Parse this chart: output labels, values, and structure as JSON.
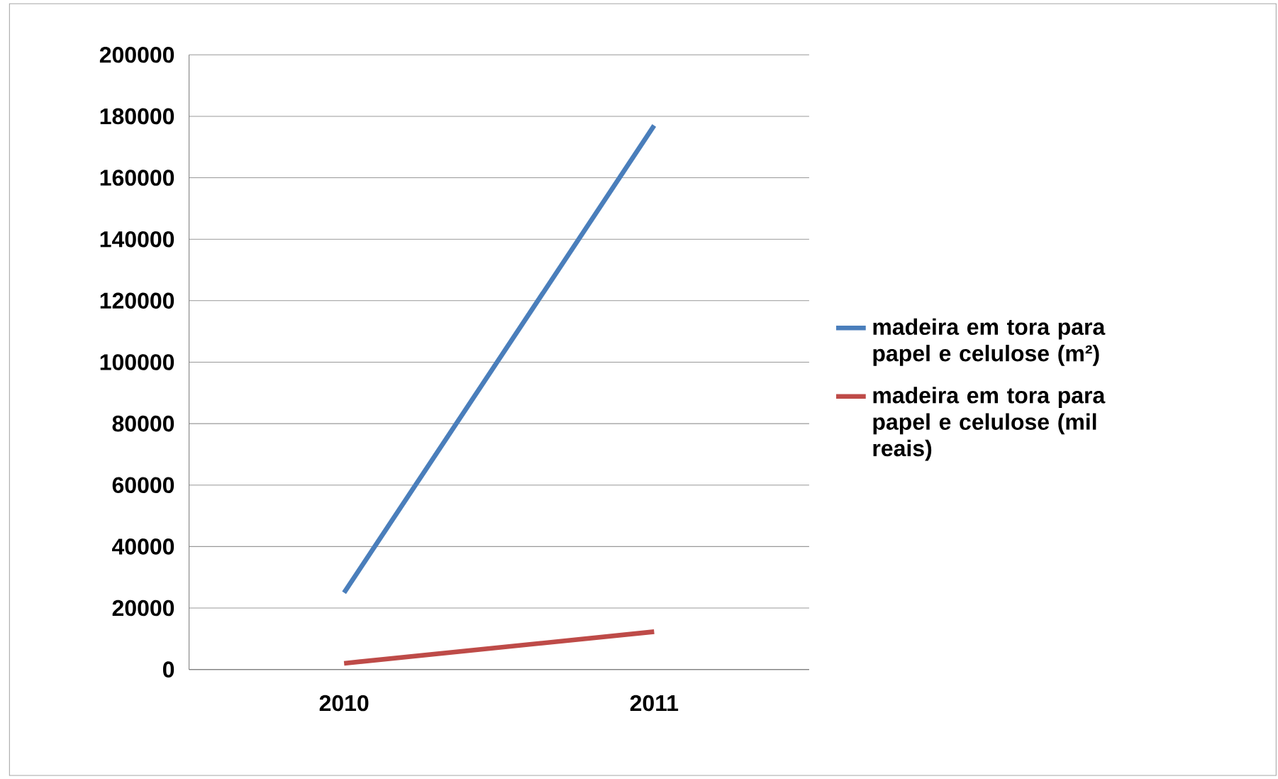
{
  "chart_data": {
    "type": "line",
    "categories": [
      "2010",
      "2011"
    ],
    "series": [
      {
        "name": "madeira em tora para papel e celulose (m²)",
        "color": "#4a7ebb",
        "values": [
          25000,
          177000
        ]
      },
      {
        "name": "madeira em tora para papel e celulose (mil reais)",
        "color": "#be4b48",
        "values": [
          2000,
          12300
        ]
      }
    ],
    "ylim": [
      0,
      200000
    ],
    "yticks": [
      0,
      20000,
      40000,
      60000,
      80000,
      100000,
      120000,
      140000,
      160000,
      180000,
      200000
    ],
    "grid": "y",
    "legend": "right",
    "marker": "none",
    "line_style": "solid"
  }
}
